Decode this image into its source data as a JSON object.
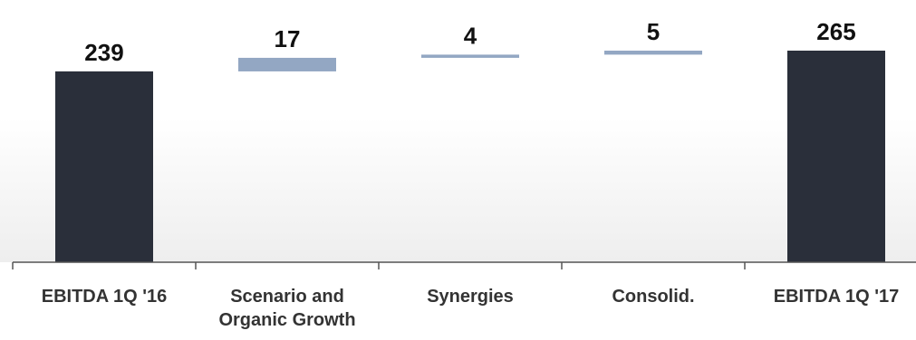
{
  "chart_data": {
    "type": "bar",
    "subtype": "waterfall",
    "categories": [
      [
        "EBITDA 1Q '16"
      ],
      [
        "Scenario and",
        "Organic Growth"
      ],
      [
        "Synergies"
      ],
      [
        "Consolid."
      ],
      [
        "EBITDA 1Q '17"
      ]
    ],
    "steps": [
      {
        "kind": "total",
        "value": 239,
        "label": "239"
      },
      {
        "kind": "delta",
        "value": 17,
        "label": "17"
      },
      {
        "kind": "delta",
        "value": 4,
        "label": "4"
      },
      {
        "kind": "delta",
        "value": 5,
        "label": "5"
      },
      {
        "kind": "total",
        "value": 265,
        "label": "265"
      }
    ],
    "ylim": [
      0,
      270
    ],
    "grid": false,
    "legend": "none",
    "colors": {
      "total": "#2a2f3a",
      "delta": "#93a7c3",
      "axis": "#555555",
      "background_fade": "#eeeeee"
    }
  }
}
